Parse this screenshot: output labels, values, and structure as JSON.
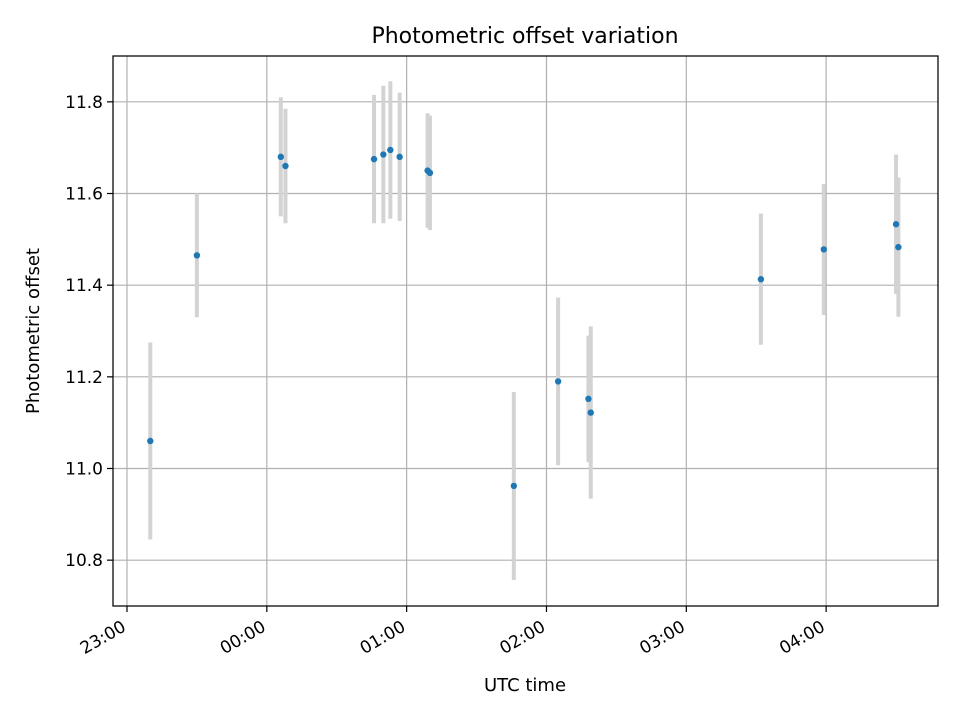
{
  "chart_data": {
    "type": "scatter",
    "title": "Photometric offset variation",
    "xlabel": "UTC time",
    "ylabel": "Photometric offset",
    "x_ticks": [
      "23:00",
      "00:00",
      "01:00",
      "02:00",
      "03:00",
      "04:00"
    ],
    "y_ticks": [
      "10.8",
      "11.0",
      "11.2",
      "11.4",
      "11.6",
      "11.8"
    ],
    "xlim": [
      "22:54",
      "04:48"
    ],
    "ylim": [
      10.7,
      11.9
    ],
    "grid": true,
    "series": [
      {
        "marker_color": "#1f77b4",
        "errorbar_color": "#d3d3d3",
        "points": [
          {
            "t": "23:10",
            "y": 11.06,
            "err": 0.215
          },
          {
            "t": "23:30",
            "y": 11.465,
            "err": 0.135
          },
          {
            "t": "00:06",
            "y": 11.68,
            "err": 0.13
          },
          {
            "t": "00:08",
            "y": 11.66,
            "err": 0.125
          },
          {
            "t": "00:46",
            "y": 11.675,
            "err": 0.14
          },
          {
            "t": "00:50",
            "y": 11.685,
            "err": 0.15
          },
          {
            "t": "00:53",
            "y": 11.695,
            "err": 0.15
          },
          {
            "t": "00:57",
            "y": 11.68,
            "err": 0.14
          },
          {
            "t": "01:09",
            "y": 11.65,
            "err": 0.125
          },
          {
            "t": "01:10",
            "y": 11.645,
            "err": 0.125
          },
          {
            "t": "01:46",
            "y": 10.962,
            "err": 0.205
          },
          {
            "t": "02:05",
            "y": 11.19,
            "err": 0.183
          },
          {
            "t": "02:18",
            "y": 11.152,
            "err": 0.138
          },
          {
            "t": "02:19",
            "y": 11.122,
            "err": 0.188
          },
          {
            "t": "03:32",
            "y": 11.413,
            "err": 0.143
          },
          {
            "t": "03:59",
            "y": 11.478,
            "err": 0.143
          },
          {
            "t": "04:30",
            "y": 11.533,
            "err": 0.152
          },
          {
            "t": "04:31",
            "y": 11.483,
            "err": 0.152
          }
        ]
      }
    ]
  }
}
